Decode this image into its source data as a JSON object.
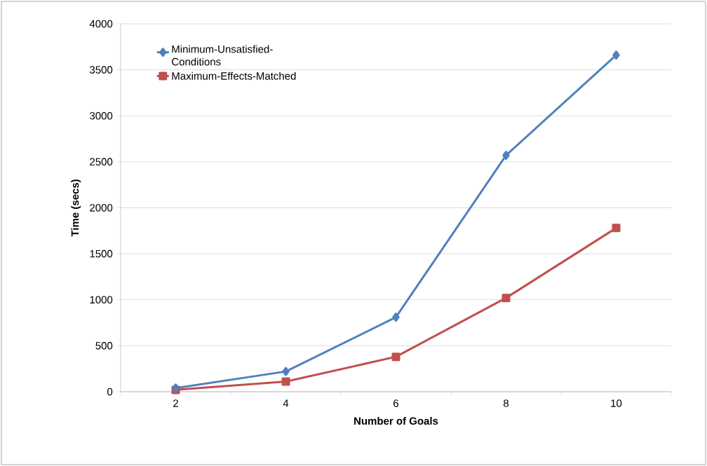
{
  "chart_data": {
    "type": "line",
    "xlabel": "Number of Goals",
    "ylabel": "Time (secs)",
    "categories": [
      "2",
      "4",
      "6",
      "8",
      "10"
    ],
    "series": [
      {
        "name": "Minimum-Unsatisfied-Conditions",
        "color": "#4f81bd",
        "marker": "diamond",
        "values": [
          40,
          220,
          810,
          2570,
          3660
        ]
      },
      {
        "name": "Maximum-Effects-Matched",
        "color": "#c0504d",
        "marker": "square",
        "values": [
          20,
          110,
          380,
          1020,
          1780
        ]
      }
    ],
    "ylim": [
      0,
      4000
    ],
    "yticks": [
      0,
      500,
      1000,
      1500,
      2000,
      2500,
      3000,
      3500,
      4000
    ],
    "grid": "y",
    "legend": "top left",
    "line_style": "solid"
  }
}
